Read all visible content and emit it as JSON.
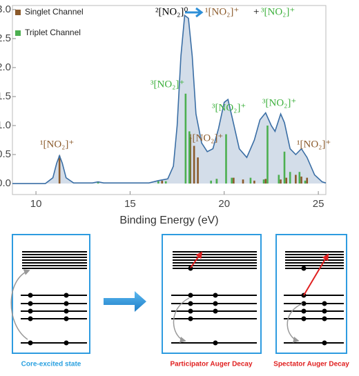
{
  "chart_data": {
    "type": "stick",
    "xlabel": "Binding Energy (eV)",
    "xlim": [
      8.75,
      25.4
    ],
    "xticks": [
      10,
      15,
      20,
      25
    ],
    "ylim": [
      -0.19,
      3.07
    ],
    "yticks": [
      {
        "value": 0,
        "label": "0.0"
      },
      0.5,
      {
        "value": 1,
        "label": "1.0"
      },
      1.5,
      {
        "value": 2,
        "label": "2.0"
      },
      2.5,
      {
        "value": 3,
        "label": "3.0"
      }
    ],
    "legend": "top-left",
    "series": [
      {
        "name": "Singlet Channel",
        "color": "#8b5a2b",
        "x": [
          11.25,
          16.7,
          18.2,
          18.4,
          18.6,
          19.6,
          20.5,
          21.0,
          21.6,
          22.2,
          23.0,
          23.3,
          23.8,
          24.1,
          24.4
        ],
        "values": [
          0.48,
          0.05,
          0.8,
          0.65,
          0.45,
          0.08,
          0.1,
          0.07,
          0.05,
          0.08,
          0.07,
          0.1,
          0.15,
          0.12,
          0.1
        ]
      },
      {
        "name": "Triplet Channel",
        "color": "#4caf50",
        "x": [
          13.3,
          16.5,
          16.9,
          17.95,
          18.15,
          19.3,
          19.6,
          20.1,
          20.4,
          21.4,
          22.1,
          22.3,
          22.9,
          23.2,
          23.5,
          24.0,
          24.3
        ],
        "values": [
          0.02,
          0.04,
          0.04,
          1.55,
          0.9,
          0.05,
          0.08,
          0.85,
          0.1,
          0.1,
          0.07,
          1.0,
          0.15,
          0.55,
          0.2,
          0.2,
          0.05
        ]
      }
    ],
    "envelope": {
      "color": "#3a6ea5",
      "fill": "#d3dde9",
      "x": [
        8.75,
        10.5,
        10.9,
        11.1,
        11.25,
        11.4,
        11.6,
        12,
        13,
        13.3,
        13.6,
        16,
        16.5,
        17,
        17.3,
        17.5,
        17.7,
        17.9,
        18.1,
        18.3,
        18.5,
        18.8,
        19.1,
        19.4,
        19.7,
        20.0,
        20.2,
        20.45,
        20.8,
        21.2,
        21.6,
        21.9,
        22.2,
        22.5,
        22.7,
        23.0,
        23.2,
        23.5,
        23.8,
        24.1,
        24.4,
        24.8,
        25.2,
        25.4
      ],
      "values": [
        0,
        0,
        0.1,
        0.35,
        0.48,
        0.35,
        0.1,
        0.01,
        0.01,
        0.03,
        0.01,
        0.01,
        0.05,
        0.08,
        0.3,
        1.0,
        2.2,
        2.9,
        2.85,
        2.2,
        1.2,
        0.7,
        0.55,
        0.6,
        0.95,
        1.4,
        1.45,
        1.1,
        0.6,
        0.45,
        0.75,
        1.1,
        1.22,
        1.0,
        0.9,
        1.2,
        1.05,
        0.6,
        0.5,
        0.6,
        0.45,
        0.15,
        0.03,
        0.01
      ]
    },
    "annotations": [
      {
        "text": "²[NO₂]⁰",
        "color": "#000000"
      },
      {
        "text": "¹[NO₂]⁺",
        "color": "#8b5a2b"
      },
      {
        "text": "+",
        "color": "#000000"
      },
      {
        "text": "³[NO₂]⁺",
        "color": "#3cb03c"
      },
      {
        "text": "³[NO₂]⁺",
        "color": "#3cb03c"
      },
      {
        "text": "¹[NO₂]⁺",
        "color": "#8b5a2b"
      },
      {
        "text": "³[NO₂]⁺",
        "color": "#3cb03c"
      },
      {
        "text": "³[NO₂]⁺",
        "color": "#3cb03c"
      },
      {
        "text": "¹[NO₂]⁺",
        "color": "#8b5a2b"
      },
      {
        "text": "¹[NO₂]⁺",
        "color": "#8b5a2b"
      }
    ]
  },
  "diagram": {
    "panels": [
      {
        "label": "Core-excited state",
        "color": "#29a0e0"
      },
      {
        "label": "Participator Auger Decay",
        "color": "#e02020"
      },
      {
        "label": "Spectator Auger Decay",
        "color": "#e02020"
      }
    ]
  }
}
